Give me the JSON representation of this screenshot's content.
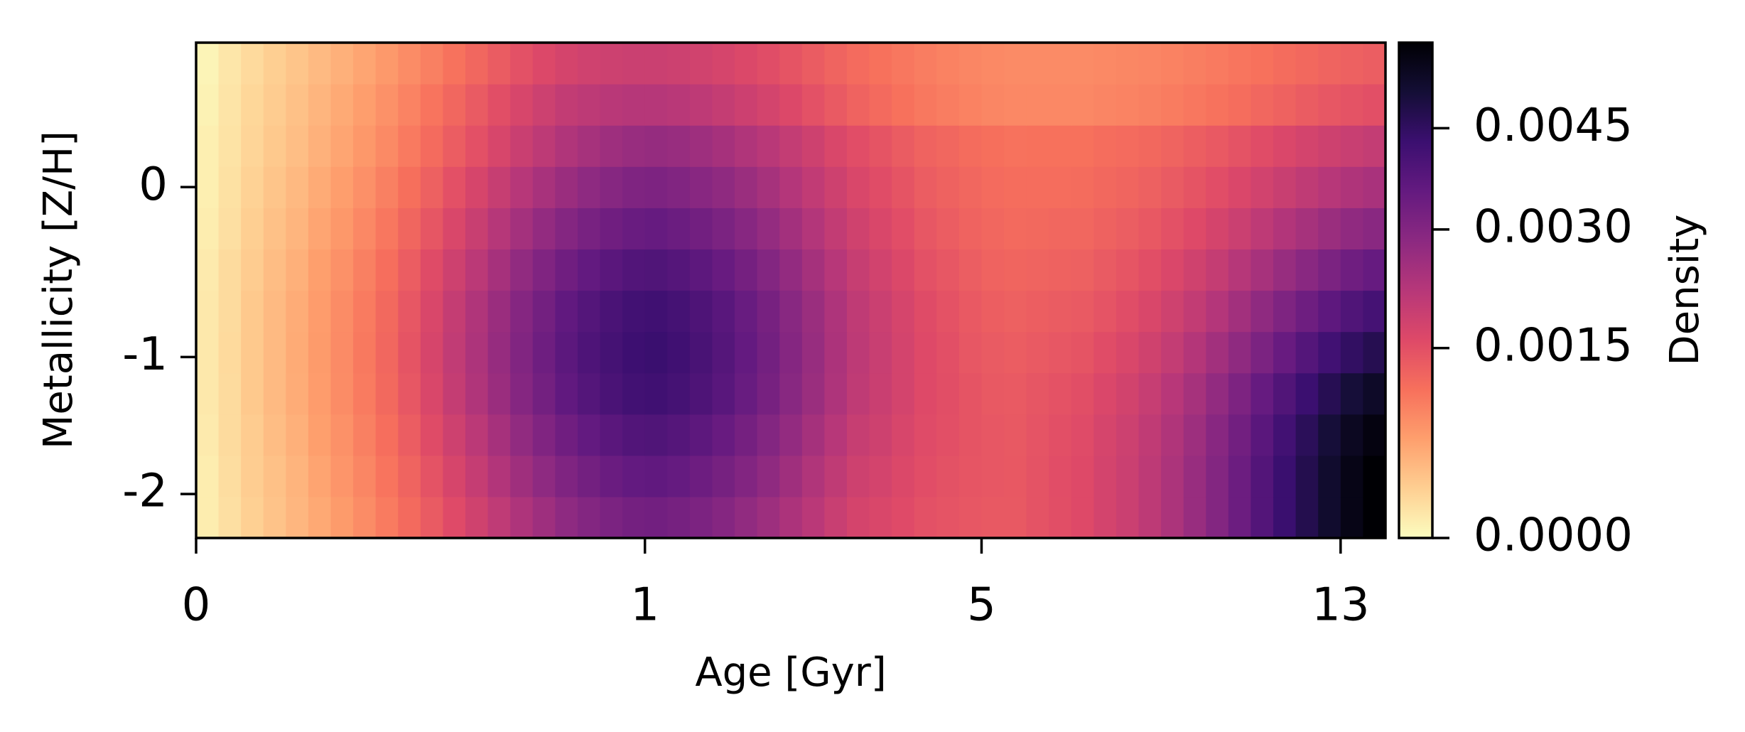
{
  "chart_data": {
    "type": "heatmap",
    "x_label": "Age [Gyr]",
    "y_label": "Metallicity [Z/H]",
    "x": [
      0,
      0.05,
      0.1,
      0.15,
      0.2,
      0.25,
      0.3,
      0.35,
      0.4,
      0.45,
      0.5,
      0.55,
      0.6,
      0.65,
      0.7,
      0.75,
      0.8,
      0.85,
      0.9,
      0.95,
      1,
      1.25,
      1.5,
      1.75,
      2,
      2.25,
      2.5,
      2.75,
      3,
      3.25,
      3.5,
      3.75,
      4,
      4.3,
      4.7,
      5,
      5.5,
      6,
      6.5,
      7,
      7.5,
      8,
      8.5,
      9,
      9.5,
      10,
      10.5,
      11,
      11.5,
      12,
      12.5,
      13,
      13.5,
      14
    ],
    "y": [
      -2.32,
      -2.02,
      -1.71,
      -1.41,
      -1.1,
      -0.84,
      -0.6,
      -0.36,
      -0.12,
      0.12,
      0.36,
      0.6,
      0.84
    ],
    "xlim": [
      0,
      14
    ],
    "ylim": [
      -2.32,
      0.84
    ],
    "xticks": [
      0,
      1,
      5,
      13
    ],
    "yticks": [
      0,
      -1,
      -2
    ],
    "colormap": "magma_r",
    "norm": {
      "type": "power",
      "gamma": 0.7
    },
    "colorbar": {
      "label": "Density",
      "lim": [
        0,
        0.0059
      ],
      "ticks": [
        {
          "value": 0,
          "label": "0.0000"
        },
        0.0015,
        {
          "value": 0.003,
          "label": "0.0030"
        },
        0.0045
      ]
    },
    "values": [
      [
        5e-05,
        0.00012,
        0.00021,
        0.0003,
        0.0004,
        0.00051,
        0.00063,
        0.00077,
        0.00094,
        0.00113,
        0.00134,
        0.00158,
        0.00181,
        0.00207,
        0.00233,
        0.00257,
        0.00281,
        0.003,
        0.00314,
        0.00326,
        0.0033,
        0.00323,
        0.00311,
        0.00296,
        0.00277,
        0.00258,
        0.00236,
        0.00215,
        0.00193,
        0.00174,
        0.00167,
        0.00158,
        0.00148,
        0.00144,
        0.00139,
        0.00137,
        0.00137,
        0.00145,
        0.00152,
        0.0016,
        0.00175,
        0.0019,
        0.0021,
        0.00235,
        0.00265,
        0.003,
        0.0034,
        0.00385,
        0.0043,
        0.00475,
        0.0052,
        0.0056,
        0.0059
      ],
      [
        5e-05,
        0.00013,
        0.00023,
        0.00032,
        0.00042,
        0.00055,
        0.00068,
        0.00083,
        0.00101,
        0.00122,
        0.00145,
        0.00171,
        0.00197,
        0.00226,
        0.00255,
        0.00281,
        0.00307,
        0.00328,
        0.00343,
        0.00356,
        0.0036,
        0.00352,
        0.00338,
        0.00322,
        0.00301,
        0.00279,
        0.00255,
        0.0023,
        0.00206,
        0.00185,
        0.00176,
        0.00164,
        0.00153,
        0.00147,
        0.00142,
        0.00139,
        0.00138,
        0.00145,
        0.00153,
        0.0016,
        0.00175,
        0.0019,
        0.0021,
        0.00235,
        0.00265,
        0.003,
        0.0034,
        0.00385,
        0.0043,
        0.00475,
        0.0052,
        0.0056,
        0.0059
      ],
      [
        6e-05,
        0.00014,
        0.00024,
        0.00035,
        0.00045,
        0.00059,
        0.00072,
        0.00089,
        0.00108,
        0.00131,
        0.00156,
        0.00185,
        0.00213,
        0.00245,
        0.00276,
        0.00305,
        0.00333,
        0.00356,
        0.00372,
        0.00386,
        0.0039,
        0.00381,
        0.00366,
        0.00348,
        0.00324,
        0.003,
        0.00273,
        0.00246,
        0.00219,
        0.00195,
        0.00184,
        0.0017,
        0.00157,
        0.0015,
        0.00143,
        0.00139,
        0.00137,
        0.00144,
        0.00151,
        0.00157,
        0.00172,
        0.00186,
        0.00205,
        0.00229,
        0.00258,
        0.00292,
        0.0033,
        0.00373,
        0.00416,
        0.0046,
        0.00503,
        0.00541,
        0.0057
      ],
      [
        7e-05,
        0.00014,
        0.00026,
        0.00037,
        0.00048,
        0.00062,
        0.00077,
        0.00094,
        0.00115,
        0.0014,
        0.00167,
        0.00198,
        0.00229,
        0.00263,
        0.00297,
        0.00328,
        0.00359,
        0.00383,
        0.00401,
        0.00416,
        0.0042,
        0.0041,
        0.00394,
        0.00374,
        0.00347,
        0.00321,
        0.00291,
        0.00262,
        0.00232,
        0.00206,
        0.00191,
        0.00176,
        0.0016,
        0.00152,
        0.00143,
        0.00137,
        0.00135,
        0.00141,
        0.00146,
        0.00152,
        0.00165,
        0.00178,
        0.00196,
        0.00218,
        0.00244,
        0.00275,
        0.0031,
        0.0035,
        0.00389,
        0.00429,
        0.00468,
        0.00504,
        0.0053
      ],
      [
        7e-05,
        0.00015,
        0.00026,
        0.00037,
        0.00049,
        0.00063,
        0.00078,
        0.00096,
        0.00118,
        0.00143,
        0.00171,
        0.00203,
        0.00234,
        0.00269,
        0.00304,
        0.00336,
        0.00368,
        0.00393,
        0.00411,
        0.00426,
        0.0043,
        0.0042,
        0.00403,
        0.00382,
        0.00355,
        0.00328,
        0.00297,
        0.00267,
        0.00236,
        0.00209,
        0.00193,
        0.00176,
        0.0016,
        0.0015,
        0.0014,
        0.00134,
        0.00131,
        0.00135,
        0.00139,
        0.00143,
        0.00155,
        0.00166,
        0.00181,
        0.002,
        0.00223,
        0.0025,
        0.0028,
        0.00314,
        0.00348,
        0.00383,
        0.00417,
        0.00447,
        0.0047
      ],
      [
        7e-05,
        0.00014,
        0.00026,
        0.00037,
        0.00048,
        0.00062,
        0.00077,
        0.00094,
        0.00115,
        0.0014,
        0.00167,
        0.00198,
        0.00229,
        0.00263,
        0.00297,
        0.00328,
        0.00359,
        0.00383,
        0.00401,
        0.00416,
        0.0042,
        0.0041,
        0.00394,
        0.00374,
        0.00347,
        0.00321,
        0.00291,
        0.00262,
        0.00232,
        0.00206,
        0.00189,
        0.00172,
        0.00156,
        0.00146,
        0.00136,
        0.00129,
        0.00126,
        0.00129,
        0.00132,
        0.00135,
        0.00144,
        0.00154,
        0.00167,
        0.00183,
        0.00202,
        0.00224,
        0.0025,
        0.00279,
        0.00308,
        0.00336,
        0.00365,
        0.00391,
        0.0041
      ],
      [
        6e-05,
        0.00014,
        0.00024,
        0.00035,
        0.00045,
        0.00059,
        0.00072,
        0.00089,
        0.00108,
        0.00131,
        0.00156,
        0.00185,
        0.00213,
        0.00245,
        0.00276,
        0.00305,
        0.00333,
        0.00356,
        0.00372,
        0.00386,
        0.0039,
        0.00381,
        0.00366,
        0.00348,
        0.00324,
        0.003,
        0.00273,
        0.00246,
        0.00219,
        0.00195,
        0.00179,
        0.00164,
        0.00148,
        0.00139,
        0.0013,
        0.00123,
        0.0012,
        0.00122,
        0.00124,
        0.00126,
        0.00134,
        0.00142,
        0.00152,
        0.00165,
        0.00181,
        0.00199,
        0.0022,
        0.00243,
        0.00267,
        0.0029,
        0.00314,
        0.00334,
        0.0035
      ],
      [
        5e-05,
        0.00012,
        0.00022,
        0.00032,
        0.00041,
        0.00054,
        0.00066,
        0.00081,
        0.00098,
        0.00119,
        0.00141,
        0.00167,
        0.00192,
        0.0022,
        0.00248,
        0.00273,
        0.00298,
        0.00318,
        0.00333,
        0.00346,
        0.0035,
        0.00342,
        0.00329,
        0.00314,
        0.00293,
        0.00272,
        0.00249,
        0.00225,
        0.00202,
        0.00181,
        0.00167,
        0.00153,
        0.0014,
        0.00131,
        0.00123,
        0.00117,
        0.00114,
        0.00115,
        0.00117,
        0.00118,
        0.00124,
        0.0013,
        0.00138,
        0.00148,
        0.0016,
        0.00174,
        0.0019,
        0.00208,
        0.00226,
        0.00244,
        0.00262,
        0.00278,
        0.0029
      ],
      [
        4e-05,
        0.00011,
        0.0002,
        0.00029,
        0.00038,
        0.00049,
        0.0006,
        0.00073,
        0.00089,
        0.00107,
        0.00126,
        0.00149,
        0.00171,
        0.00195,
        0.00219,
        0.00241,
        0.00263,
        0.00281,
        0.00294,
        0.00306,
        0.0031,
        0.00303,
        0.00292,
        0.00279,
        0.00262,
        0.00244,
        0.00224,
        0.00204,
        0.00185,
        0.00167,
        0.00155,
        0.00143,
        0.00131,
        0.00124,
        0.00117,
        0.00112,
        0.00109,
        0.00109,
        0.0011,
        0.00111,
        0.00116,
        0.0012,
        0.00126,
        0.00134,
        0.00143,
        0.00153,
        0.00165,
        0.00179,
        0.00192,
        0.00206,
        0.00219,
        0.00231,
        0.0024
      ],
      [
        4e-05,
        0.0001,
        0.00018,
        0.00026,
        0.00034,
        0.00044,
        0.00054,
        0.00066,
        0.00079,
        0.00095,
        0.00112,
        0.00131,
        0.00149,
        0.0017,
        0.00191,
        0.0021,
        0.00229,
        0.00244,
        0.00256,
        0.00266,
        0.0027,
        0.00265,
        0.00256,
        0.00245,
        0.0023,
        0.00216,
        0.002,
        0.00184,
        0.00167,
        0.00153,
        0.00143,
        0.00133,
        0.00123,
        0.00117,
        0.00111,
        0.00107,
        0.00104,
        0.00105,
        0.00105,
        0.00105,
        0.00109,
        0.00112,
        0.00116,
        0.00122,
        0.00129,
        0.00136,
        0.00145,
        0.00155,
        0.00165,
        0.00175,
        0.00185,
        0.00193,
        0.002
      ],
      [
        3e-05,
        9e-05,
        0.00017,
        0.00024,
        0.00032,
        0.00041,
        0.0005,
        0.0006,
        0.00072,
        0.00086,
        0.00101,
        0.00117,
        0.00134,
        0.00152,
        0.00169,
        0.00186,
        0.00201,
        0.0021,
        0.00216,
        0.0022,
        0.0022,
        0.00216,
        0.00208,
        0.00199,
        0.00187,
        0.00175,
        0.00162,
        0.00148,
        0.00135,
        0.00123,
        0.00114,
        0.00105,
        0.00097,
        0.00092,
        0.00087,
        0.00083,
        0.00081,
        0.00081,
        0.00081,
        0.00081,
        0.00084,
        0.00086,
        0.00089,
        0.00093,
        0.00098,
        0.00104,
        0.0011,
        0.00117,
        0.00124,
        0.00132,
        0.00139,
        0.00145,
        0.0015
      ],
      [
        2e-05,
        8e-05,
        0.00015,
        0.00022,
        0.00029,
        0.00037,
        0.00045,
        0.00054,
        0.00065,
        0.00077,
        0.00089,
        0.00104,
        0.00118,
        0.00133,
        0.00148,
        0.00162,
        0.00174,
        0.00182,
        0.00186,
        0.0019,
        0.0019,
        0.00186,
        0.0018,
        0.00173,
        0.00164,
        0.00154,
        0.00143,
        0.00132,
        0.00122,
        0.00112,
        0.00105,
        0.00098,
        0.00092,
        0.00087,
        0.00083,
        0.0008,
        0.00078,
        0.00078,
        0.00078,
        0.00078,
        0.0008,
        0.00082,
        0.00084,
        0.00087,
        0.00091,
        0.00095,
        0.001,
        0.00105,
        0.00111,
        0.00116,
        0.00122,
        0.00126,
        0.0013
      ]
    ]
  }
}
